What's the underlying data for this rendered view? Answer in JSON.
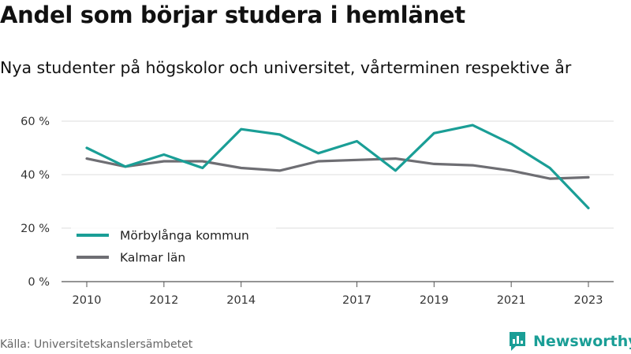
{
  "title": "Andel som börjar studera i hemlänet",
  "subtitle": "Nya studenter på högskolor och universitet, vårterminen respektive år",
  "source": "Källa: Universitetskanslersämbetet",
  "brand": "Newsworthy",
  "colors": {
    "accent": "#1a9e96",
    "secondary": "#6e6e73",
    "grid": "#dddddd"
  },
  "chart_data": {
    "type": "line",
    "title": "Andel som börjar studera i hemlänet",
    "subtitle": "Nya studenter på högskolor och universitet, vårterminen respektive år",
    "x": [
      2010,
      2011,
      2012,
      2013,
      2014,
      2015,
      2016,
      2017,
      2018,
      2019,
      2020,
      2021,
      2022,
      2023
    ],
    "x_ticks": [
      "2010",
      "2012",
      "2014",
      "2017",
      "2019",
      "2021",
      "2023"
    ],
    "y_ticks": [
      "0 %",
      "20 %",
      "40 %",
      "60 %"
    ],
    "ylim": [
      0,
      65
    ],
    "grid": true,
    "legend_position": "bottom-left",
    "series": [
      {
        "name": "Mörbylånga kommun",
        "color": "#1a9e96",
        "values": [
          50,
          43,
          47.5,
          42.5,
          57,
          55,
          48,
          52.5,
          41.5,
          55.5,
          58.5,
          51.5,
          42.5,
          27.5
        ]
      },
      {
        "name": "Kalmar län",
        "color": "#6e6e73",
        "values": [
          46,
          43,
          45,
          45,
          42.5,
          41.5,
          45,
          45.5,
          46,
          44,
          43.5,
          41.5,
          38.5,
          39
        ]
      }
    ]
  }
}
